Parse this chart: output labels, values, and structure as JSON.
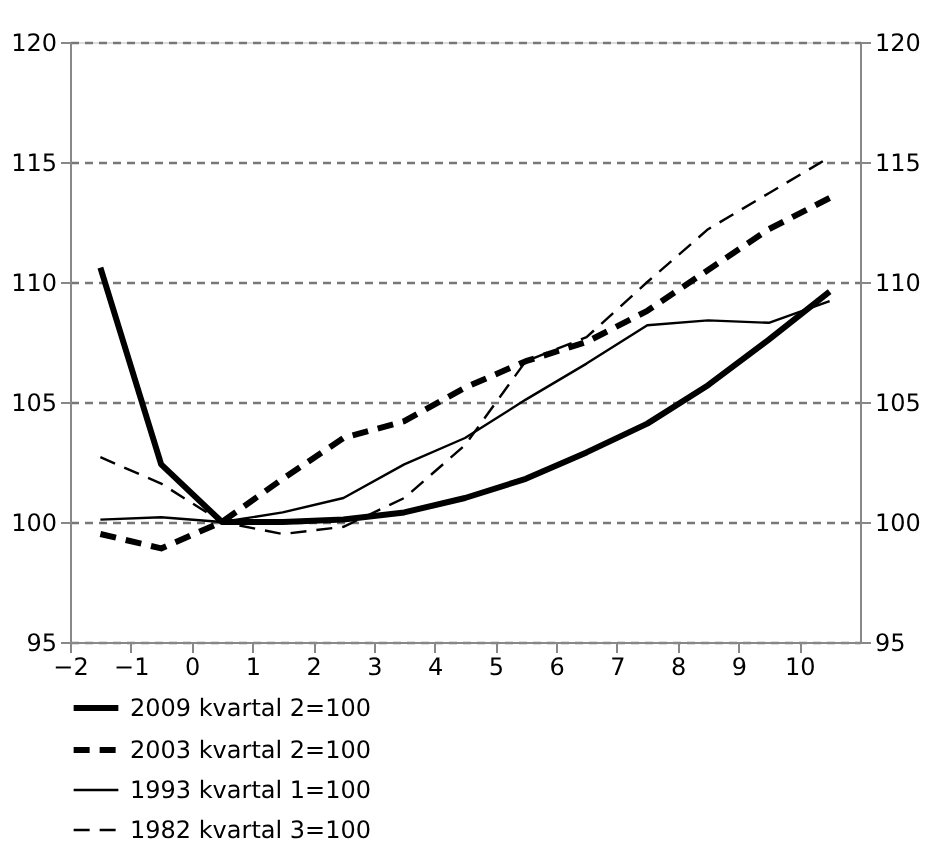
{
  "chart_data": {
    "type": "line",
    "x": [
      -1.5,
      -0.5,
      0.5,
      1.5,
      2.5,
      3.5,
      4.5,
      5.5,
      6.5,
      7.5,
      8.5,
      9.5,
      10.5
    ],
    "series": [
      {
        "name": "2009 kvartal 2=100",
        "color": "#000000",
        "line_style": "solid",
        "values": [
          110.6,
          102.4,
          100.0,
          100.0,
          100.1,
          100.4,
          101.0,
          101.8,
          102.9,
          104.1,
          105.7,
          107.6,
          109.6
        ]
      },
      {
        "name": "2003 kvartal 2=100",
        "color": "#000000",
        "line_style": "dashed",
        "values": [
          99.5,
          98.9,
          100.0,
          101.8,
          103.5,
          104.2,
          105.6,
          106.7,
          107.5,
          108.8,
          110.5,
          112.2,
          113.5
        ]
      },
      {
        "name": "1993 kvartal 1=100",
        "color": "#000000",
        "line_style": "solid",
        "values": [
          100.1,
          100.2,
          100.0,
          100.4,
          101.0,
          102.4,
          103.5,
          105.1,
          106.6,
          108.2,
          108.4,
          108.3,
          109.2
        ]
      },
      {
        "name": "1982 kvartal 3=100",
        "color": "#000000",
        "line_style": "dashed",
        "values": [
          102.7,
          101.6,
          100.0,
          99.5,
          99.8,
          101.0,
          103.2,
          106.7,
          107.7,
          110.0,
          112.2,
          113.7,
          115.2
        ]
      }
    ],
    "xlim": [
      -2,
      11
    ],
    "xticks": [
      -2,
      -1,
      0,
      1,
      2,
      3,
      4,
      5,
      6,
      7,
      8,
      9,
      10
    ],
    "ylim": [
      95,
      120
    ],
    "yticks": [
      95,
      100,
      105,
      110,
      115,
      120
    ],
    "y2lim": [
      95,
      120
    ],
    "y2ticks": [
      95,
      100,
      105,
      110,
      115,
      120
    ],
    "grid": "y",
    "legend": "bottom",
    "marker": "none"
  }
}
